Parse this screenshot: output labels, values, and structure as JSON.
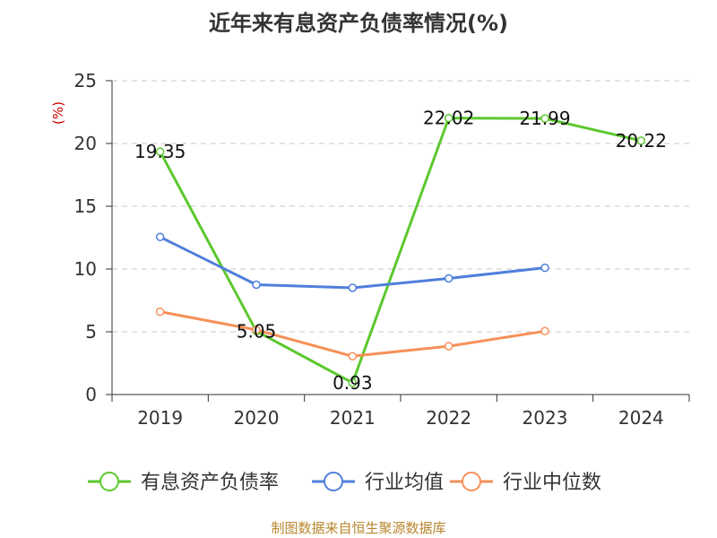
{
  "chart_data": {
    "type": "line",
    "title": "近年来有息资产负债率情况(%)",
    "unit_label": "(%)",
    "categories": [
      "2019",
      "2020",
      "2021",
      "2022",
      "2023",
      "2024"
    ],
    "ylim": [
      0,
      25
    ],
    "yticks": [
      0,
      5,
      10,
      15,
      20,
      25
    ],
    "grid": true,
    "legend_position": "bottom",
    "series": [
      {
        "name": "有息资产负债率",
        "color": "#5cc82e",
        "values": [
          19.35,
          5.05,
          0.93,
          22.02,
          21.99,
          20.22
        ],
        "data_labels": [
          "19.35",
          "5.05",
          "0.93",
          "22.02",
          "21.99",
          "20.22"
        ]
      },
      {
        "name": "行业均值",
        "color": "#4f7fdb",
        "values": [
          12.55,
          8.75,
          8.5,
          9.25,
          10.1,
          null
        ]
      },
      {
        "name": "行业中位数",
        "color": "#f79058",
        "values": [
          6.6,
          5.15,
          3.05,
          3.85,
          5.05,
          null
        ]
      }
    ],
    "source": "制图数据来自恒生聚源数据库"
  }
}
